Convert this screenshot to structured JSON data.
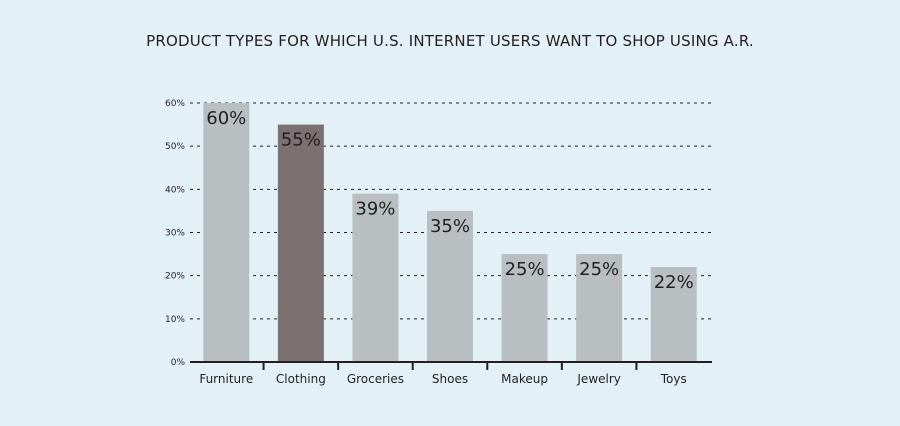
{
  "colors": {
    "background": "#e3f0f6",
    "bar_default": "#b9bfc1",
    "bar_highlight": "#7a7170",
    "axis": "#231f20",
    "text": "#231f20"
  },
  "chart_data": {
    "type": "bar",
    "title": "PRODUCT TYPES FOR WHICH U.S. INTERNET USERS WANT TO SHOP USING A.R.",
    "xlabel": "",
    "ylabel": "",
    "categories": [
      "Furniture",
      "Clothing",
      "Groceries",
      "Shoes",
      "Makeup",
      "Jewelry",
      "Toys"
    ],
    "values": [
      60,
      55,
      39,
      35,
      25,
      25,
      22
    ],
    "value_labels": [
      "60%",
      "55%",
      "39%",
      "35%",
      "25%",
      "25%",
      "22%"
    ],
    "highlight_category": "Clothing",
    "ylim": [
      0,
      60
    ],
    "yticks": [
      0,
      10,
      20,
      30,
      40,
      50,
      60
    ],
    "ytick_labels": [
      "0%",
      "10%",
      "20%",
      "30%",
      "40%",
      "50%",
      "60%"
    ],
    "grid": "dotted horizontal",
    "legend": "none"
  }
}
